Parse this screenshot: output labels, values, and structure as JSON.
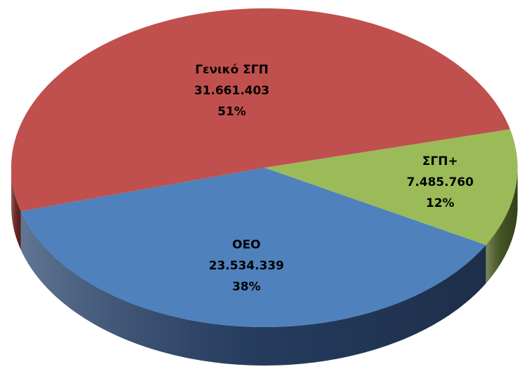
{
  "chart_data": {
    "type": "pie",
    "categories": [
      "ΣΓΠ+",
      "ΟΕΟ",
      "Γενικό ΣΓΠ"
    ],
    "values": [
      7485760,
      23534339,
      31661403
    ],
    "value_labels": [
      "7.485.760",
      "23.534.339",
      "31.661.403"
    ],
    "percent_labels": [
      "12%",
      "38%",
      "51%"
    ],
    "colors": [
      "#9bbb59",
      "#4f81bd",
      "#c0504d"
    ],
    "side_colors": [
      "#4f6228",
      "#2c4770",
      "#7a2e2c"
    ]
  }
}
